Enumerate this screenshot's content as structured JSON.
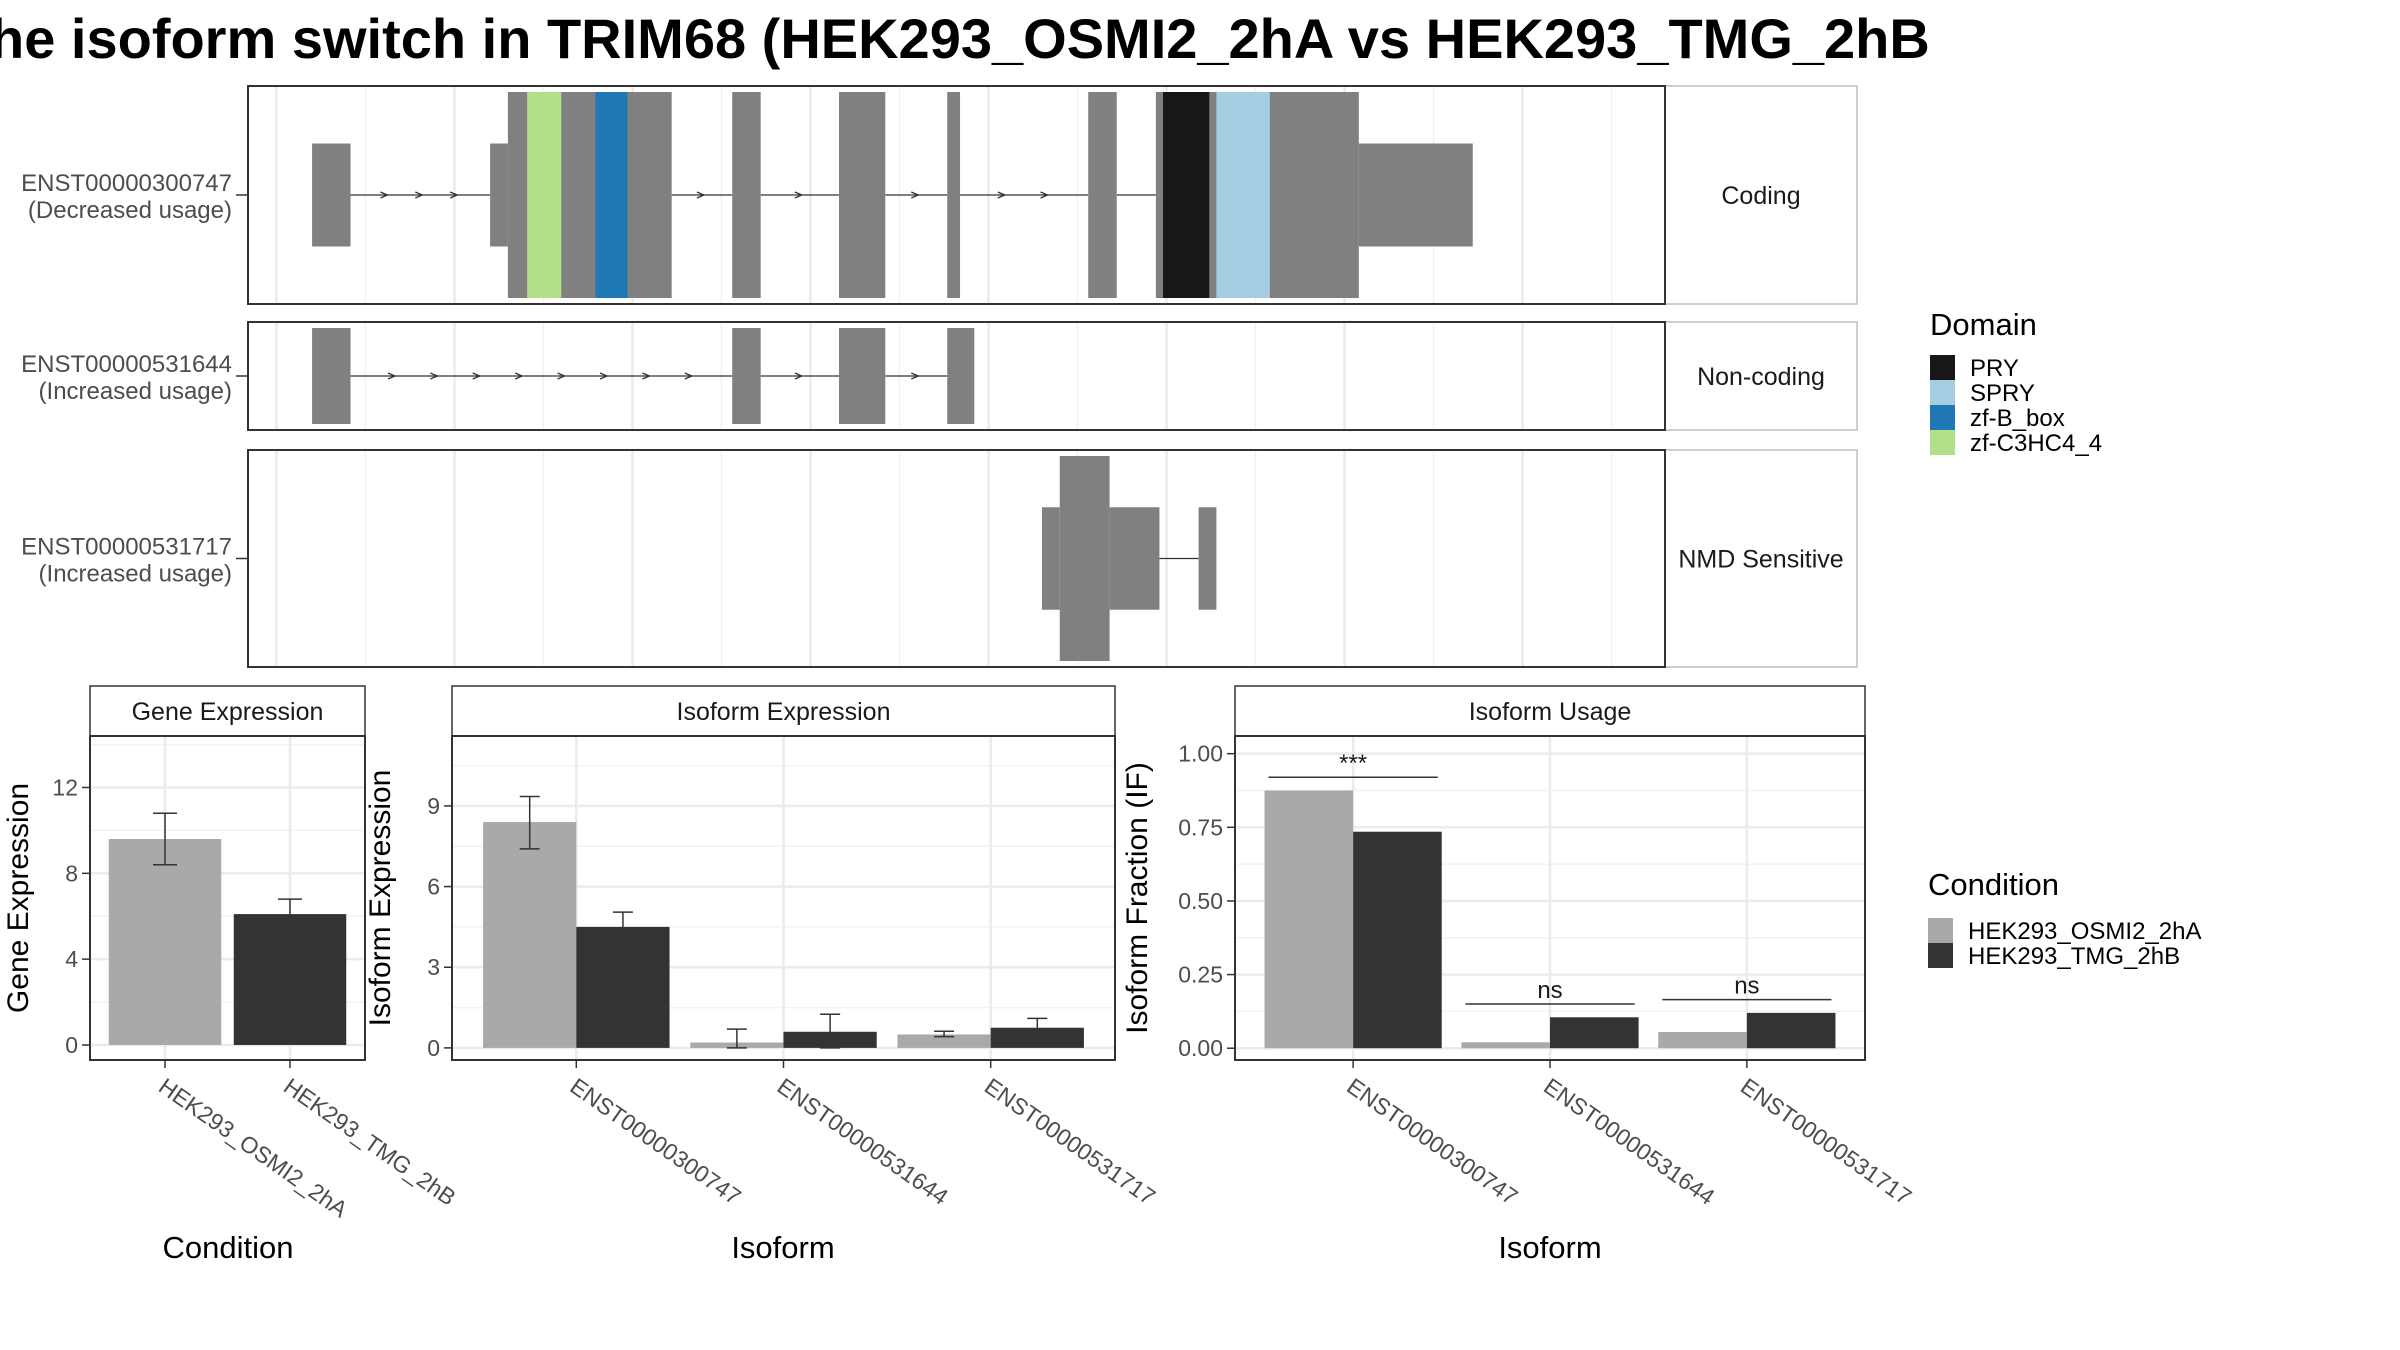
{
  "title": "he isoform switch in TRIM68 (HEK293_OSMI2_2hA vs HEK293_TMG_2hB",
  "colors": {
    "condition_a": "#a9a9a9",
    "condition_b": "#333333",
    "exon": "#808080",
    "domains": {
      "PRY": "#171717",
      "SPRY": "#a6cee3",
      "zf-B_box": "#1f78b4",
      "zf-C3HC4_4": "#b2df8a"
    }
  },
  "chart_data": [
    {
      "type": "gene-structure",
      "transcripts": [
        {
          "id": "ENST00000300747",
          "usage": "(Decreased usage)",
          "category": "Coding",
          "exons": [
            {
              "start": 0.5,
              "end": 1.04,
              "kind": "utr"
            },
            {
              "start": 3.0,
              "end": 3.25,
              "kind": "utr"
            },
            {
              "start": 3.25,
              "end": 5.55,
              "kind": "cds"
            },
            {
              "start": 6.4,
              "end": 6.8,
              "kind": "cds"
            },
            {
              "start": 7.9,
              "end": 8.55,
              "kind": "cds"
            },
            {
              "start": 9.42,
              "end": 9.6,
              "kind": "cds"
            },
            {
              "start": 11.4,
              "end": 11.8,
              "kind": "cds"
            },
            {
              "start": 12.35,
              "end": 15.2,
              "kind": "cds"
            },
            {
              "start": 15.2,
              "end": 16.8,
              "kind": "utr"
            }
          ],
          "domains": [
            {
              "name": "zf-C3HC4_4",
              "start": 3.52,
              "end": 4.0
            },
            {
              "name": "zf-B_box",
              "start": 4.48,
              "end": 4.93
            },
            {
              "name": "PRY",
              "start": 12.45,
              "end": 13.1
            },
            {
              "name": "SPRY",
              "start": 13.2,
              "end": 13.95
            }
          ]
        },
        {
          "id": "ENST00000531644",
          "usage": "(Increased usage)",
          "category": "Non-coding",
          "exons": [
            {
              "start": 0.5,
              "end": 1.04,
              "kind": "cds"
            },
            {
              "start": 6.4,
              "end": 6.8,
              "kind": "cds"
            },
            {
              "start": 7.9,
              "end": 8.55,
              "kind": "cds"
            },
            {
              "start": 9.42,
              "end": 9.8,
              "kind": "cds"
            }
          ],
          "domains": []
        },
        {
          "id": "ENST00000531717",
          "usage": "(Increased usage)",
          "category": "NMD Sensitive",
          "exons": [
            {
              "start": 10.75,
              "end": 11.0,
              "kind": "utr"
            },
            {
              "start": 11.0,
              "end": 11.7,
              "kind": "cds"
            },
            {
              "start": 11.7,
              "end": 12.4,
              "kind": "utr"
            },
            {
              "start": 12.95,
              "end": 13.2,
              "kind": "utr"
            }
          ],
          "domains": []
        }
      ]
    },
    {
      "type": "bar",
      "panel": "Gene Expression",
      "xlabel": "Condition",
      "ylabel": "Gene Expression",
      "categories": [
        "HEK293_OSMI2_2hA",
        "HEK293_TMG_2hB"
      ],
      "values": [
        9.6,
        6.1
      ],
      "errors": [
        [
          8.4,
          10.8
        ],
        [
          5.4,
          6.8
        ]
      ],
      "yticks": [
        "0",
        "4",
        "8",
        "12"
      ],
      "ylim": [
        -0.7,
        14.4
      ]
    },
    {
      "type": "bar",
      "panel": "Isoform Expression",
      "xlabel": "Isoform",
      "ylabel": "Isoform Expression",
      "categories": [
        "ENST00000300747",
        "ENST00000531644",
        "ENST00000531717"
      ],
      "series": [
        {
          "name": "HEK293_OSMI2_2hA",
          "values": [
            8.4,
            0.2,
            0.5
          ],
          "errors": [
            [
              7.4,
              9.35
            ],
            [
              0.0,
              0.7
            ],
            [
              0.42,
              0.62
            ]
          ]
        },
        {
          "name": "HEK293_TMG_2hB",
          "values": [
            4.5,
            0.6,
            0.75
          ],
          "errors": [
            [
              4.0,
              5.05
            ],
            [
              0.0,
              1.25
            ],
            [
              0.4,
              1.1
            ]
          ]
        }
      ],
      "yticks": [
        "0",
        "3",
        "6",
        "9"
      ],
      "ylim": [
        -0.45,
        11.6
      ]
    },
    {
      "type": "bar",
      "panel": "Isoform Usage",
      "xlabel": "Isoform",
      "ylabel": "Isoform Fraction (IF)",
      "categories": [
        "ENST00000300747",
        "ENST00000531644",
        "ENST00000531717"
      ],
      "series": [
        {
          "name": "HEK293_OSMI2_2hA",
          "values": [
            0.875,
            0.02,
            0.055
          ]
        },
        {
          "name": "HEK293_TMG_2hB",
          "values": [
            0.735,
            0.105,
            0.12
          ]
        }
      ],
      "significance": [
        {
          "label": "***",
          "y": 0.92
        },
        {
          "label": "ns",
          "y": 0.15
        },
        {
          "label": "ns",
          "y": 0.165
        }
      ],
      "yticks": [
        "0.00",
        "0.25",
        "0.50",
        "0.75",
        "1.00"
      ],
      "ylim": [
        -0.04,
        1.06
      ]
    }
  ],
  "domain_legend": {
    "title": "Domain",
    "items": [
      "PRY",
      "SPRY",
      "zf-B_box",
      "zf-C3HC4_4"
    ]
  },
  "condition_legend": {
    "title": "Condition",
    "items": [
      "HEK293_OSMI2_2hA",
      "HEK293_TMG_2hB"
    ]
  }
}
